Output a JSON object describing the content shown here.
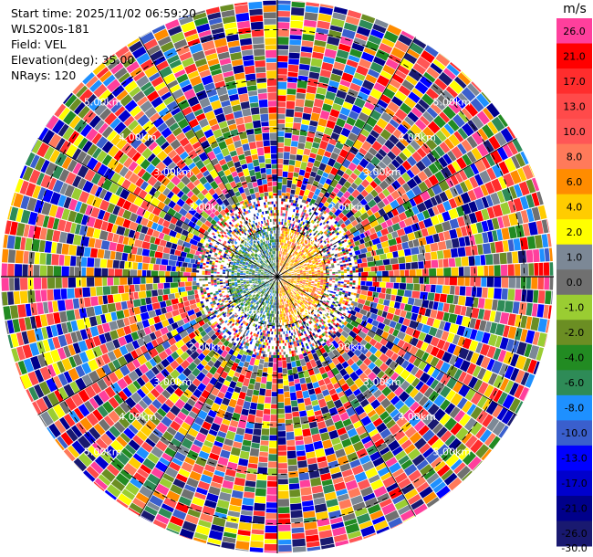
{
  "meta": {
    "start_time": "Start time: 2025/11/02 06:59:20",
    "instrument": "WLS200s-181",
    "field": "Field: VEL",
    "elevation": "Elevation(deg): 35.00",
    "nrays": "NRays: 120"
  },
  "chart_data": {
    "type": "heatmap",
    "projection": "polar-ppi",
    "field": "VEL",
    "n_rays": 120,
    "range_rings": [
      {
        "label": "1.00km",
        "km": 1
      },
      {
        "label": "2.00km",
        "km": 2
      },
      {
        "label": "3.00km",
        "km": 3
      },
      {
        "label": "4.00km",
        "km": 4
      },
      {
        "label": "5.00km",
        "km": 5
      }
    ],
    "max_range_km": 5.6,
    "near_field_km": 1.6,
    "colorbar": {
      "unit": "m/s",
      "ticks": [
        "26.0",
        "21.0",
        "17.0",
        "13.0",
        "10.0",
        "8.0",
        "6.0",
        "4.0",
        "2.0",
        "1.0",
        "0.0",
        "-1.0",
        "-2.0",
        "-4.0",
        "-6.0",
        "-8.0",
        "-10.0",
        "-13.0",
        "-17.0",
        "-21.0",
        "-26.0",
        "-30.0"
      ],
      "bin_colors": [
        "#ff3f9c",
        "#ff0000",
        "#ff2d2d",
        "#ff4a4a",
        "#ff5656",
        "#ff7a5a",
        "#ff8c00",
        "#ffcc00",
        "#ffff00",
        "#7c8896",
        "#707070",
        "#9acd32",
        "#6b8e23",
        "#228b22",
        "#2e8b57",
        "#1e90ff",
        "#3a5fcd",
        "#0000ff",
        "#0000cd",
        "#00008b",
        "#191970"
      ]
    }
  }
}
